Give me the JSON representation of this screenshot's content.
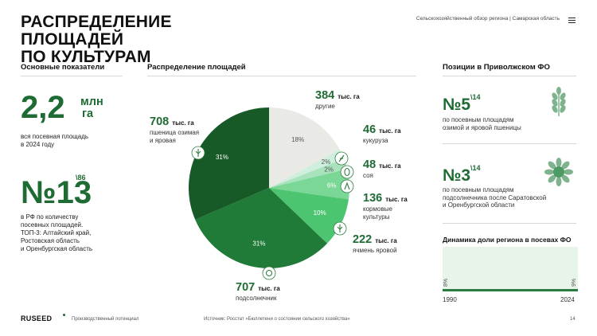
{
  "header": {
    "title_line1": "РАСПРЕДЕЛЕНИЕ ПЛОЩАДЕЙ",
    "title_line2": "ПО КУЛЬТУРАМ",
    "meta": "Сельскохозяйственный обзор региона  |  Самарская область",
    "menu_icon": "hamburger-menu-icon"
  },
  "left": {
    "heading": "Основные показатели",
    "area_value": "2,2",
    "area_unit_line1": "млн",
    "area_unit_line2": "га",
    "area_desc_line1": "вся посевная площадь",
    "area_desc_line2": "в 2024 году",
    "rank_prefix": "№",
    "rank_value": "13",
    "rank_sup": "\\86",
    "rank_desc_line1": "в РФ по количеству",
    "rank_desc_line2": "посевных площадей.",
    "rank_top_line1": "ТОП-3: Алтайский край,",
    "rank_top_line2": "Ростовская область",
    "rank_top_line3": "и Оренбургская область"
  },
  "middle": {
    "heading": "Распределение площадей"
  },
  "chart_data": {
    "type": "pie",
    "unit": "тыс. га",
    "slices": [
      {
        "name": "другие",
        "value": 384,
        "percent": 18,
        "value_label": "384",
        "pct_label": "18%",
        "color": "#e9e9e5"
      },
      {
        "name": "кукуруза",
        "value": 46,
        "percent": 2,
        "value_label": "46",
        "pct_label": "2%",
        "color": "#cfeedd"
      },
      {
        "name": "соя",
        "value": 48,
        "percent": 2,
        "value_label": "48",
        "pct_label": "2%",
        "color": "#a8e3bd"
      },
      {
        "name": "кормовые культуры",
        "value": 136,
        "percent": 6,
        "value_label": "136",
        "pct_label": "6%",
        "color": "#7ad796"
      },
      {
        "name": "ячмень яровой",
        "value": 222,
        "percent": 10,
        "value_label": "222",
        "pct_label": "10%",
        "color": "#4dc570"
      },
      {
        "name": "подсолнечник",
        "value": 707,
        "percent": 31,
        "value_label": "707",
        "pct_label": "31%",
        "color": "#207a38"
      },
      {
        "name": "пшеница озимая и яровая",
        "value": 708,
        "percent": 31,
        "value_label": "708",
        "pct_label": "31%",
        "color": "#175a28"
      }
    ]
  },
  "pie_labels": {
    "other_num": "384",
    "other_txt": "другие",
    "corn_num": "46",
    "corn_txt": "кукуруза",
    "soy_num": "48",
    "soy_txt": "соя",
    "fodder_num": "136",
    "fodder_txt1": "кормовые",
    "fodder_txt2": "культуры",
    "barley_num": "222",
    "barley_txt": "ячмень яровой",
    "sun_num": "707",
    "sun_txt": "подсолнечник",
    "wheat_num": "708",
    "wheat_txt1": "пшеница озимая",
    "wheat_txt2": "и яровая",
    "unit": "тыс. га"
  },
  "right": {
    "heading": "Позиции в Приволжском ФО",
    "pos1_prefix": "№",
    "pos1_value": "5",
    "pos1_sup": "\\14",
    "pos1_desc_line1": "по посевным площадям",
    "pos1_desc_line2": "озимой и яровой пшеницы",
    "pos2_prefix": "№",
    "pos2_value": "3",
    "pos2_sup": "\\14",
    "pos2_desc_line1": "по посевным площадям",
    "pos2_desc_line2": "подсолнечника после Саратовской",
    "pos2_desc_line3": "и Оренбургской области",
    "dyn_heading": "Динамика доли региона в посевах ФО",
    "dyn_chart": {
      "type": "area",
      "x": [
        "1990",
        "2024"
      ],
      "values": [
        8,
        9
      ],
      "labels": [
        "8%",
        "9%"
      ]
    }
  },
  "footer": {
    "logo": "RUSEED",
    "tagline": "Производственный потенциал",
    "source": "Источник: Росстат «Бюллетени о состоянии сельского хозяйства»",
    "page": "14"
  }
}
